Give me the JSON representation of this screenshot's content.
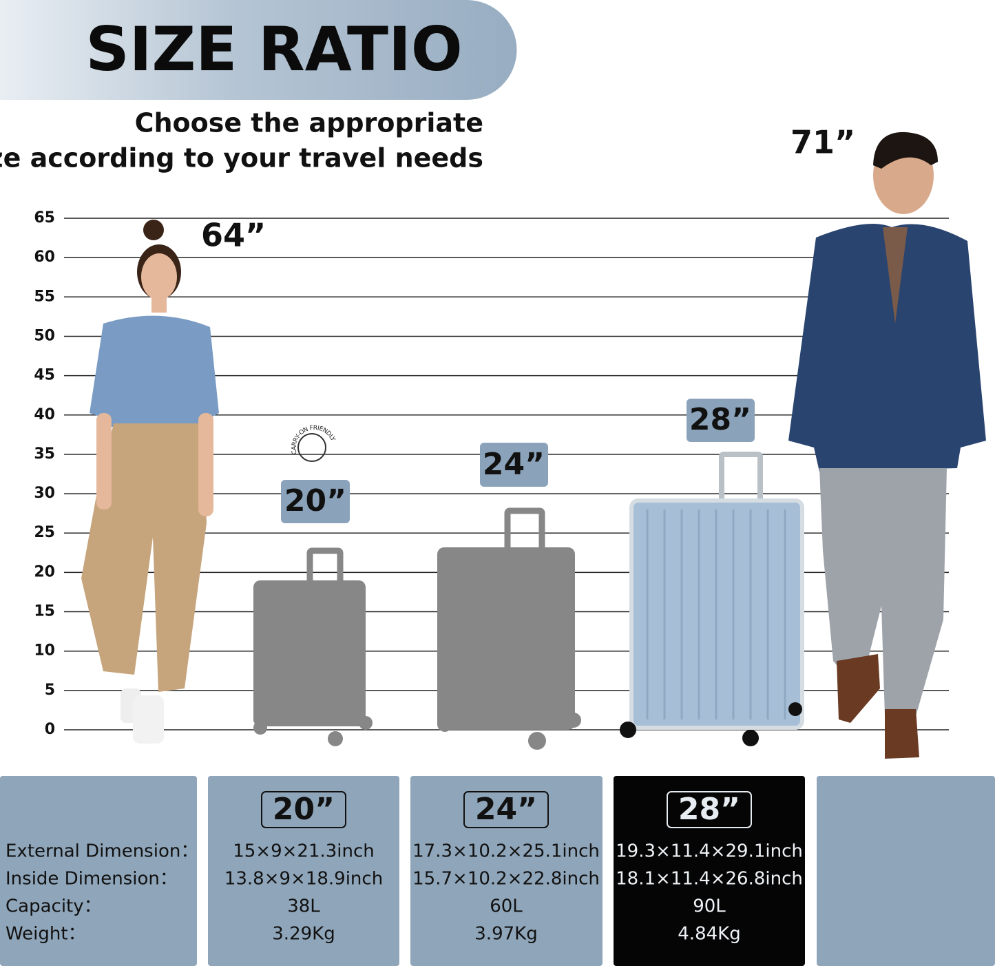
{
  "header": {
    "title": "SIZE RATIO",
    "subtitle": [
      "Choose the appropriate",
      "size according to your travel needs"
    ]
  },
  "scale": {
    "ticks": [
      65,
      60,
      55,
      50,
      45,
      40,
      35,
      30,
      25,
      20,
      15,
      10,
      5,
      0
    ]
  },
  "people": [
    {
      "height_label": "64”"
    },
    {
      "height_label": "71”"
    }
  ],
  "suitcases": [
    {
      "label": "20”",
      "badge": "CARRY-ON FRIENDLY"
    },
    {
      "label": "24”"
    },
    {
      "label": "28”"
    }
  ],
  "table": {
    "row_labels": [
      "External Dimension：",
      "Inside Dimension：",
      "Capacity：",
      "Weight："
    ],
    "columns": [
      {
        "size": "20”",
        "values": [
          "15×9×21.3inch",
          "13.8×9×18.9inch",
          "38L",
          "3.29Kg"
        ]
      },
      {
        "size": "24”",
        "values": [
          "17.3×10.2×25.1inch",
          "15.7×10.2×22.8inch",
          "60L",
          "3.97Kg"
        ]
      },
      {
        "size": "28”",
        "values": [
          "19.3×11.4×29.1inch",
          "18.1×11.4×26.8inch",
          "90L",
          "4.84Kg"
        ]
      }
    ]
  }
}
